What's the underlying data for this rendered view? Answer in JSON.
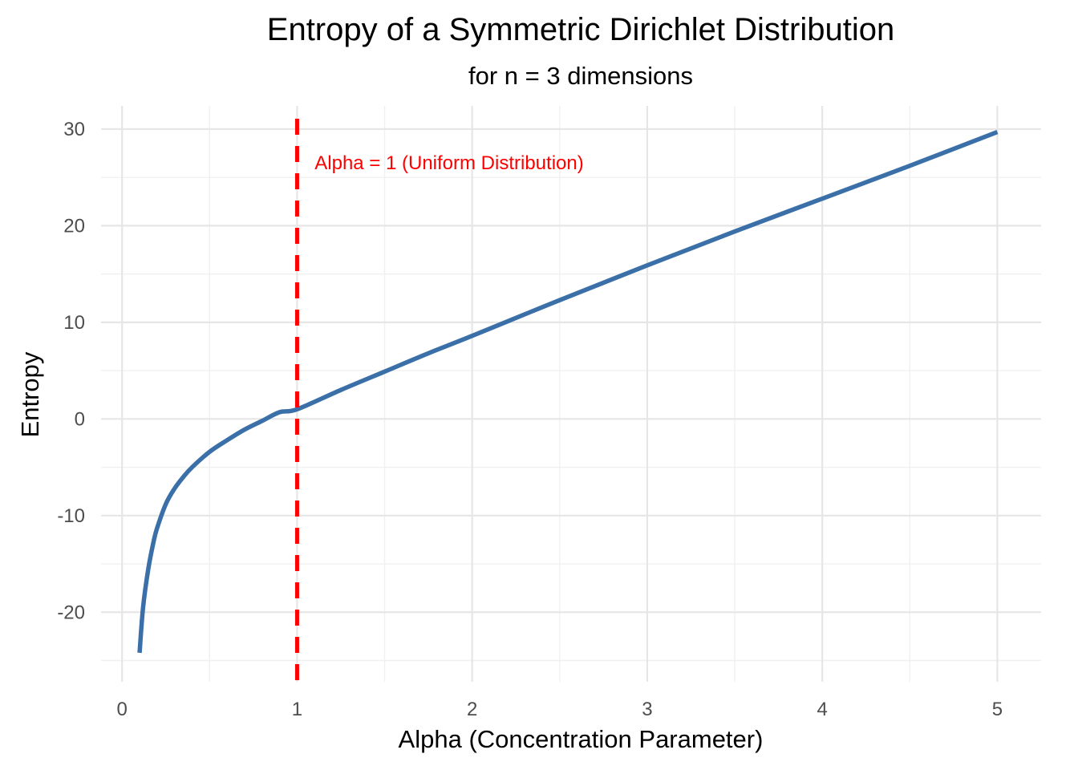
{
  "chart_data": {
    "type": "line",
    "title": "Entropy of a Symmetric Dirichlet Distribution",
    "subtitle": "for n = 3 dimensions",
    "xlabel": "Alpha (Concentration Parameter)",
    "ylabel": "Entropy",
    "xlim": [
      -0.12,
      5.25
    ],
    "ylim": [
      -27.2,
      32.4
    ],
    "x_ticks": [
      0,
      1,
      2,
      3,
      4,
      5
    ],
    "x_tick_labels": [
      "0",
      "1",
      "2",
      "3",
      "4",
      "5"
    ],
    "x_minor_ticks": [
      0.5,
      1.5,
      2.5,
      3.5,
      4.5
    ],
    "y_ticks": [
      -20,
      -10,
      0,
      10,
      20,
      30
    ],
    "y_tick_labels": [
      "-20",
      "-10",
      "0",
      "10",
      "20",
      "30"
    ],
    "y_minor_ticks": [
      -25,
      -15,
      -5,
      5,
      15,
      25
    ],
    "grid": true,
    "series": [
      {
        "name": "Entropy",
        "color": "#3a6fa8",
        "x": [
          0.1,
          0.12,
          0.15,
          0.18,
          0.2,
          0.25,
          0.3,
          0.35,
          0.4,
          0.5,
          0.6,
          0.7,
          0.8,
          0.9,
          1.0,
          1.25,
          1.5,
          1.75,
          2.0,
          2.5,
          3.0,
          3.5,
          4.0,
          4.5,
          5.0
        ],
        "y": [
          -24.2,
          -19.5,
          -15.5,
          -12.7,
          -11.3,
          -8.8,
          -7.2,
          -6.0,
          -5.0,
          -3.4,
          -2.2,
          -1.1,
          -0.2,
          0.7,
          1.0,
          3.0,
          4.9,
          6.8,
          8.6,
          12.3,
          15.9,
          19.4,
          22.8,
          26.2,
          29.7
        ]
      }
    ],
    "reference_line": {
      "axis": "x",
      "value": 1,
      "color": "#ff0000",
      "style": "dashed"
    },
    "annotations": [
      {
        "text": "Alpha = 1 (Uniform Distribution)",
        "x": 1.1,
        "y": 26.5,
        "color": "#ff0000"
      }
    ]
  }
}
